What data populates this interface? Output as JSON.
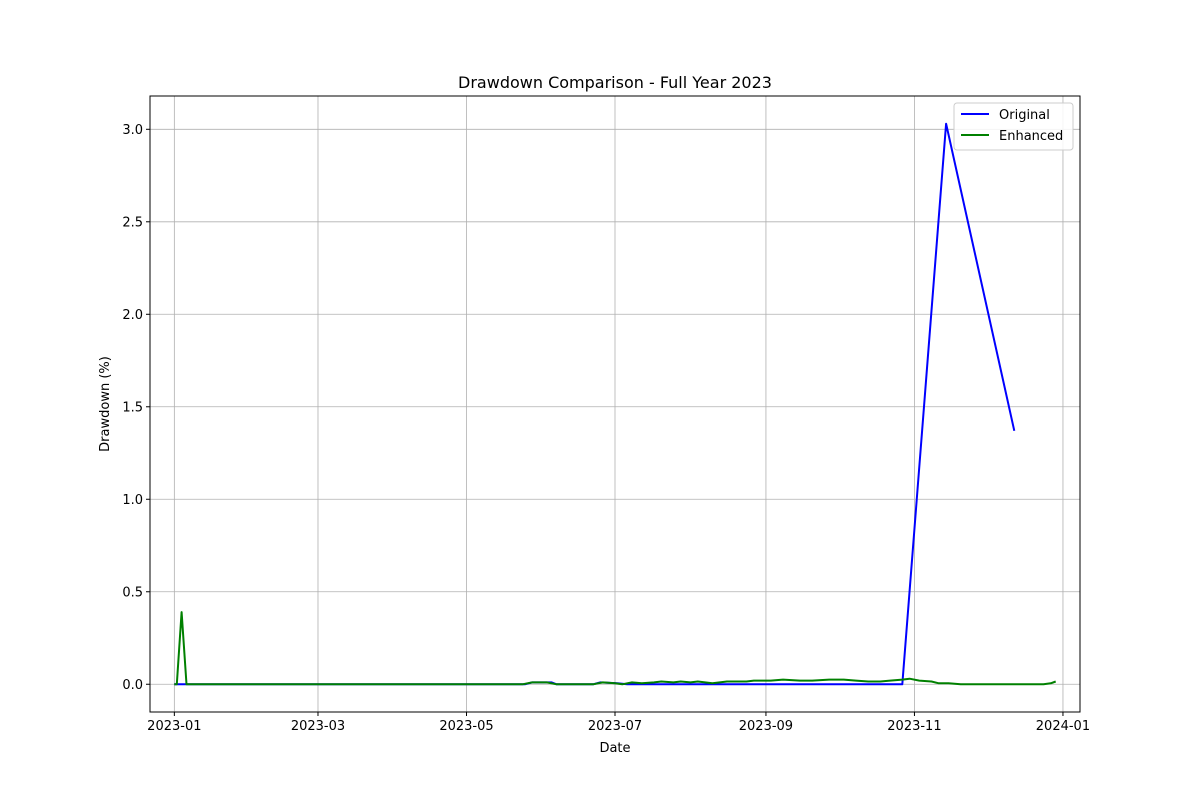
{
  "chart_data": {
    "type": "line",
    "title": "Drawdown Comparison - Full Year 2023",
    "xlabel": "Date",
    "ylabel": "Drawdown (%)",
    "x_axis_type": "date",
    "xlim": [
      "2022-12-22",
      "2024-01-08"
    ],
    "ylim": [
      -0.15,
      3.18
    ],
    "x_ticks": [
      "2023-01-01",
      "2023-03-01",
      "2023-05-01",
      "2023-07-01",
      "2023-09-01",
      "2023-11-01",
      "2024-01-01"
    ],
    "x_tick_labels": [
      "2023-01",
      "2023-03",
      "2023-05",
      "2023-07",
      "2023-09",
      "2023-11",
      "2024-01"
    ],
    "y_ticks": [
      0.0,
      0.5,
      1.0,
      1.5,
      2.0,
      2.5,
      3.0
    ],
    "y_tick_labels": [
      "0.0",
      "0.5",
      "1.0",
      "1.5",
      "2.0",
      "2.5",
      "3.0"
    ],
    "grid": true,
    "legend_position": "upper right",
    "series": [
      {
        "name": "Original",
        "color": "#0000ff",
        "points": [
          [
            "2023-01-01",
            0.0
          ],
          [
            "2023-05-25",
            0.0
          ],
          [
            "2023-05-28",
            0.01
          ],
          [
            "2023-06-05",
            0.01
          ],
          [
            "2023-06-07",
            0.0
          ],
          [
            "2023-06-22",
            0.0
          ],
          [
            "2023-06-25",
            0.01
          ],
          [
            "2023-07-02",
            0.005
          ],
          [
            "2023-07-06",
            0.0
          ],
          [
            "2023-08-10",
            0.0
          ],
          [
            "2023-10-15",
            0.0
          ],
          [
            "2023-10-27",
            0.0
          ],
          [
            "2023-11-14",
            3.03
          ],
          [
            "2023-12-12",
            1.37
          ]
        ]
      },
      {
        "name": "Enhanced",
        "color": "#008000",
        "points": [
          [
            "2023-01-01",
            0.0
          ],
          [
            "2023-01-02",
            0.0
          ],
          [
            "2023-01-04",
            0.39
          ],
          [
            "2023-01-06",
            0.0
          ],
          [
            "2023-05-24",
            0.0
          ],
          [
            "2023-05-28",
            0.01
          ],
          [
            "2023-06-03",
            0.01
          ],
          [
            "2023-06-07",
            0.0
          ],
          [
            "2023-06-22",
            0.0
          ],
          [
            "2023-06-26",
            0.01
          ],
          [
            "2023-07-01",
            0.005
          ],
          [
            "2023-07-04",
            0.0
          ],
          [
            "2023-07-08",
            0.01
          ],
          [
            "2023-07-12",
            0.005
          ],
          [
            "2023-07-17",
            0.01
          ],
          [
            "2023-07-20",
            0.015
          ],
          [
            "2023-07-25",
            0.01
          ],
          [
            "2023-07-28",
            0.015
          ],
          [
            "2023-08-01",
            0.01
          ],
          [
            "2023-08-04",
            0.015
          ],
          [
            "2023-08-10",
            0.005
          ],
          [
            "2023-08-16",
            0.015
          ],
          [
            "2023-08-24",
            0.015
          ],
          [
            "2023-08-27",
            0.02
          ],
          [
            "2023-09-03",
            0.02
          ],
          [
            "2023-09-08",
            0.025
          ],
          [
            "2023-09-15",
            0.02
          ],
          [
            "2023-09-20",
            0.02
          ],
          [
            "2023-09-27",
            0.025
          ],
          [
            "2023-10-03",
            0.025
          ],
          [
            "2023-10-08",
            0.02
          ],
          [
            "2023-10-13",
            0.015
          ],
          [
            "2023-10-18",
            0.015
          ],
          [
            "2023-10-22",
            0.02
          ],
          [
            "2023-10-27",
            0.025
          ],
          [
            "2023-10-30",
            0.03
          ],
          [
            "2023-11-03",
            0.02
          ],
          [
            "2023-11-08",
            0.015
          ],
          [
            "2023-11-11",
            0.005
          ],
          [
            "2023-11-15",
            0.005
          ],
          [
            "2023-11-20",
            0.0
          ],
          [
            "2023-12-24",
            0.0
          ],
          [
            "2023-12-27",
            0.005
          ],
          [
            "2023-12-29",
            0.015
          ]
        ]
      }
    ]
  }
}
